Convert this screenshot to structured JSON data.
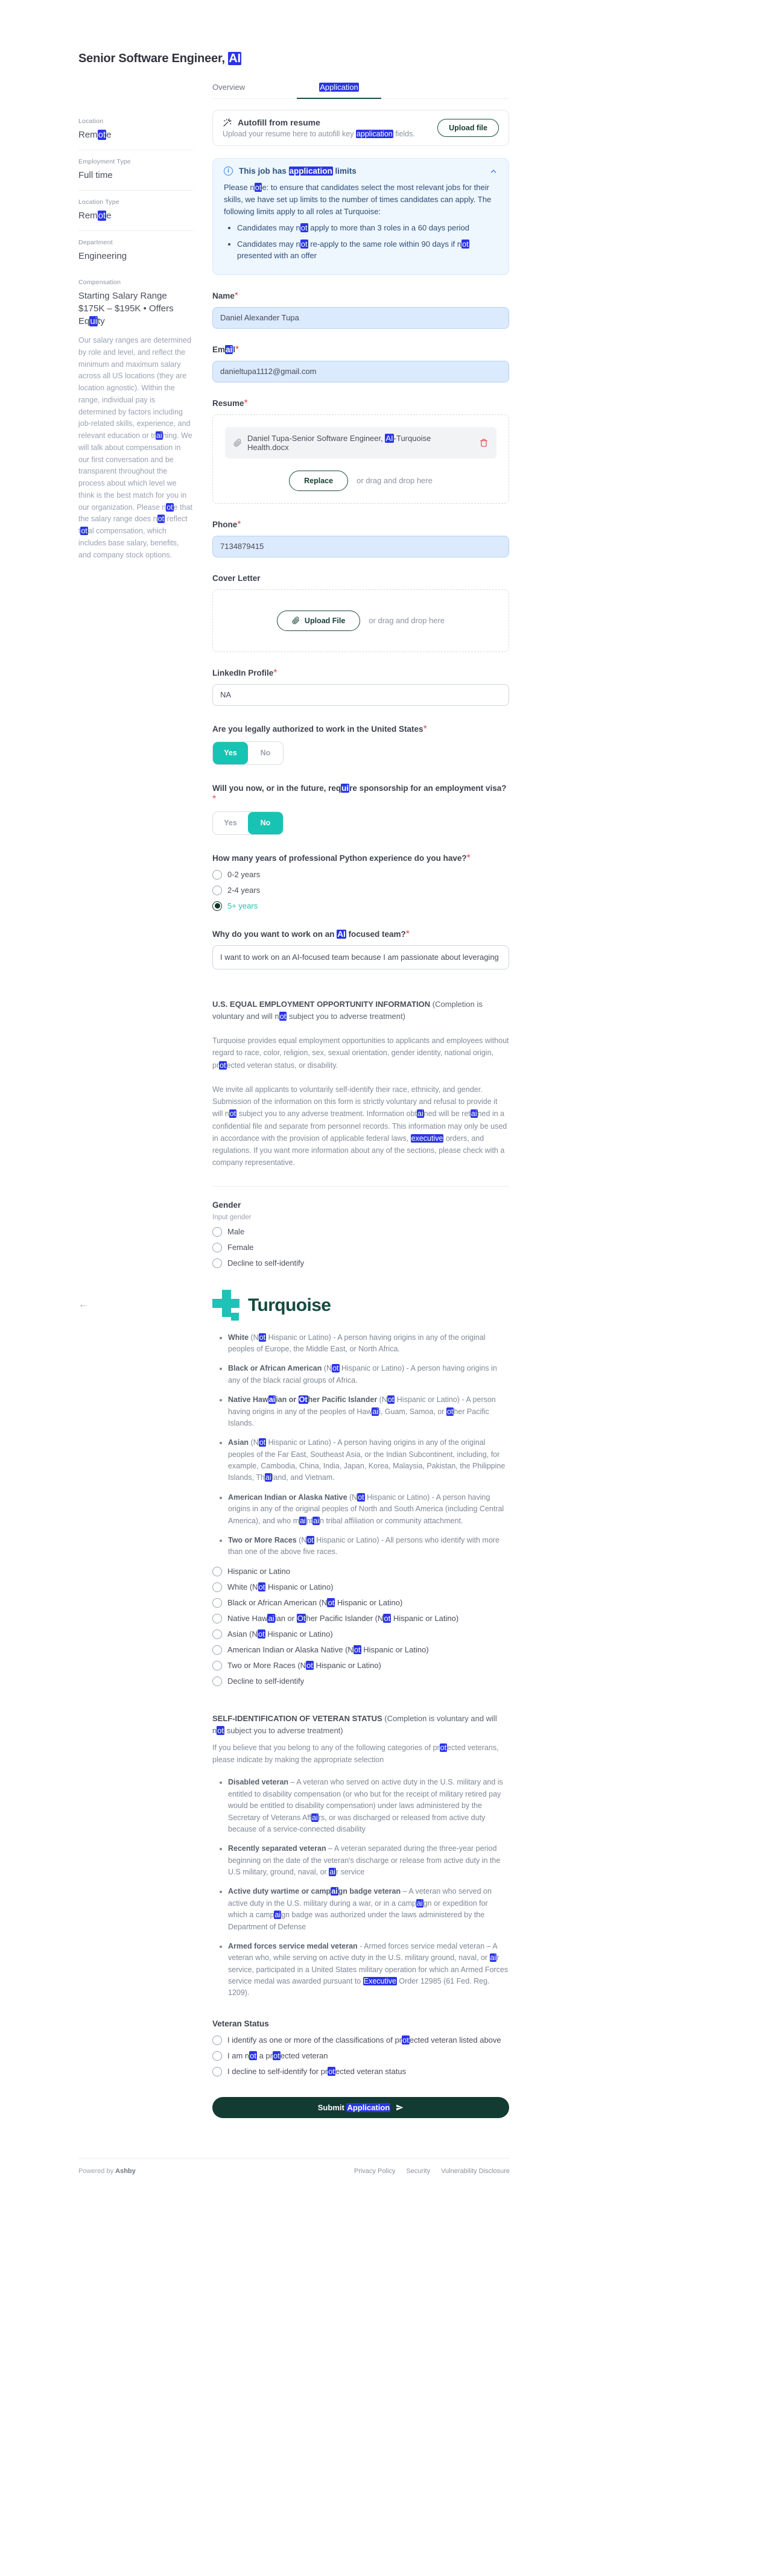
{
  "highlight": {
    "terms": [
      "application",
      "executive",
      "ai",
      "ot",
      "ui"
    ],
    "color": "#2a35e5"
  },
  "colors": {
    "accent_teal": "#17c3b2",
    "brand_dark_teal": "#164a41",
    "submit_bg": "#123c31",
    "notice_blue": "#3187ea",
    "highlight_blue": "#2a35e5",
    "filled_input_bg": "#dceafd",
    "required_red": "#e5484d"
  },
  "header": {
    "title": "Senior Software Engineer, AI"
  },
  "tabs": {
    "overview": "Overview",
    "application": "Application"
  },
  "sidebar": {
    "sections": [
      {
        "label": "Location",
        "value": "Remote"
      },
      {
        "label": "Employment Type",
        "value": "Full time"
      },
      {
        "label": "Location Type",
        "value": "Remote"
      },
      {
        "label": "Department",
        "value": "Engineering"
      }
    ],
    "compensation": {
      "label": "Compensation",
      "range": "Starting Salary Range $175K – $195K • Offers Equity",
      "description": "Our salary ranges are determined by role and level, and reflect the minimum and maximum salary across all US locations (they are location agnostic). Within the range, individual pay is determined by factors including job-related skills, experience, and relevant education or training. We will talk about compensation in our first conversation and be transparent throughout the process about which level we think is the best match for you in our organization. Please note that the salary range does not reflect total compensation, which includes base salary, benefits, and company stock options."
    }
  },
  "autofill": {
    "title": "Autofill from resume",
    "subtitle": "Upload your resume here to autofill key application fields.",
    "button": "Upload file"
  },
  "notice": {
    "title": "This job has application limits",
    "body": "Please note: to ensure that candidates select the most relevant jobs for their skills, we have set up limits to the number of times candidates can apply. The following limits apply to all roles at Turquoise:",
    "bullets": [
      "Candidates may not apply to more than 3 roles in a 60 days period",
      "Candidates may not re-apply to the same role within 90 days if not presented with an offer"
    ]
  },
  "ui": {
    "required_marker": "*",
    "back_arrow": "←"
  },
  "fields": {
    "name": {
      "label": "Name",
      "value": "Daniel Alexander Tupa"
    },
    "email": {
      "label": "Email",
      "value": "danieltupa1112@gmail.com"
    },
    "resume": {
      "label": "Resume",
      "filename": "Daniel Tupa-Senior Software Engineer, AI-Turquoise Health.docx",
      "replace_label": "Replace",
      "drop_hint": "or drag and drop here"
    },
    "phone": {
      "label": "Phone",
      "value": "7134879415"
    },
    "cover_letter": {
      "label": "Cover Letter",
      "upload_label": "Upload File",
      "drop_hint": "or drag and drop here"
    },
    "linkedin": {
      "label": "LinkedIn Profile",
      "value": "NA"
    }
  },
  "questions": {
    "authorized": {
      "label": "Are you legally authorized to work in the United States",
      "yes": "Yes",
      "no": "No",
      "selected": "Yes"
    },
    "sponsorship": {
      "label": "Will you now, or in the future, require sponsorship for an employment visa?",
      "yes": "Yes",
      "no": "No",
      "selected": "No"
    },
    "python": {
      "label": "How many years of professional Python experience do you have?",
      "options": [
        {
          "label": "0-2 years"
        },
        {
          "label": "2-4 years"
        },
        {
          "label": "5+ years",
          "selected": true
        }
      ]
    },
    "why_ai": {
      "label": "Why do you want to work on an AI focused team?",
      "value": "I want to work on an AI-focused team because I am passionate about leveraging t"
    }
  },
  "eeo": {
    "heading": "U.S. EQUAL EMPLOYMENT OPPORTUNITY INFORMATION",
    "heading_note": "(Completion is voluntary and will not subject you to adverse treatment)",
    "para1": "Turquoise provides equal employment opportunities to applicants and employees without regard to race, color, religion, sex, sexual orientation, gender identity, national origin, protected veteran status, or disability.",
    "para2": "We invite all applicants to voluntarily self-identify their race, ethnicity, and gender. Submission of the information on this form is strictly voluntary and refusal to provide it will not subject you to any adverse treatment. Information obtained will be retained in a confidential file and separate from personnel records. This information may only be used in accordance with the provision of applicable federal laws, executive orders, and regulations. If you want more information about any of the sections, please check with a company representative."
  },
  "gender": {
    "label": "Gender",
    "hint": "Input gender",
    "options": [
      {
        "label": "Male"
      },
      {
        "label": "Female"
      },
      {
        "label": "Decline to self-identify"
      }
    ]
  },
  "brand": {
    "name": "Turquoise"
  },
  "race": {
    "definitions": [
      {
        "term": "White",
        "text": "(Not Hispanic or Latino) - A person having origins in any of the original peoples of Europe, the Middle East, or North Africa."
      },
      {
        "term": "Black or African American",
        "text": "(Not Hispanic or Latino) - A person having origins in any of the black racial groups of Africa."
      },
      {
        "term": "Native Hawaiian or Other Pacific Islander",
        "text": "(Not Hispanic or Latino) - A person having origins in any of the peoples of Hawaii, Guam, Samoa, or other Pacific Islands."
      },
      {
        "term": "Asian",
        "text": "(Not Hispanic or Latino) - A person having origins in any of the original peoples of the Far East, Southeast Asia, or the Indian Subcontinent, including, for example, Cambodia, China, India, Japan, Korea, Malaysia, Pakistan, the Philippine Islands, Thailand, and Vietnam."
      },
      {
        "term": "American Indian or Alaska Native",
        "text": "(Not Hispanic or Latino) - A person having origins in any of the original peoples of North and South America (including Central America), and who maintain tribal affiliation or community attachment."
      },
      {
        "term": "Two or More Races",
        "text": "(Not Hispanic or Latino) - All persons who identify with more than one of the above five races."
      }
    ],
    "options": [
      {
        "label": "Hispanic or Latino"
      },
      {
        "label": "White (Not Hispanic or Latino)"
      },
      {
        "label": "Black or African American (Not Hispanic or Latino)"
      },
      {
        "label": "Native Hawaiian or Other Pacific Islander (Not Hispanic or Latino)"
      },
      {
        "label": "Asian (Not Hispanic or Latino)"
      },
      {
        "label": "American Indian or Alaska Native (Not Hispanic or Latino)"
      },
      {
        "label": "Two or More Races (Not Hispanic or Latino)"
      },
      {
        "label": "Decline to self-identify"
      }
    ]
  },
  "veteran": {
    "heading": "SELF-IDENTIFICATION OF VETERAN STATUS",
    "heading_note": "(Completion is voluntary and will not subject you to adverse treatment)",
    "intro": "If you believe that you belong to any of the following categories of protected veterans, please indicate by making the appropriate selection",
    "definitions": [
      {
        "term": "Disabled veteran",
        "text": "– A veteran who served on active duty in the U.S. military and is entitled to disability compensation (or who but for the receipt of military retired pay would be entitled to disability compensation) under laws administered by the Secretary of Veterans Affairs, or was discharged or released from active duty because of a service-connected disability"
      },
      {
        "term": "Recently separated veteran",
        "text": "– A veteran separated during the three-year period beginning on the date of the veteran's discharge or release from active duty in the U.S military, ground, naval, or air service"
      },
      {
        "term": "Active duty wartime or campaign badge veteran",
        "text": "– A veteran who served on active duty in the U.S. military during a war, or in a campaign or expedition for which a campaign badge was authorized under the laws administered by the Department of Defense"
      },
      {
        "term": "Armed forces service medal veteran",
        "text": "- Armed forces service medal veteran – A veteran who, while serving on active duty in the U.S. military ground, naval, or air service, participated in a United States military operation for which an Armed Forces service medal was awarded pursuant to Executive Order 12985 (61 Fed. Reg. 1209)."
      }
    ],
    "status_label": "Veteran Status",
    "options": [
      {
        "label": "I identify as one or more of the classifications of protected veteran listed above"
      },
      {
        "label": "I am not a protected veteran"
      },
      {
        "label": "I decline to self-identify for protected veteran status"
      }
    ]
  },
  "submit": {
    "label": "Submit Application"
  },
  "footer": {
    "powered_by": "Powered by",
    "brand": "Ashby",
    "links": [
      {
        "label": "Privacy Policy"
      },
      {
        "label": "Security"
      },
      {
        "label": "Vulnerability Disclosure"
      }
    ]
  }
}
